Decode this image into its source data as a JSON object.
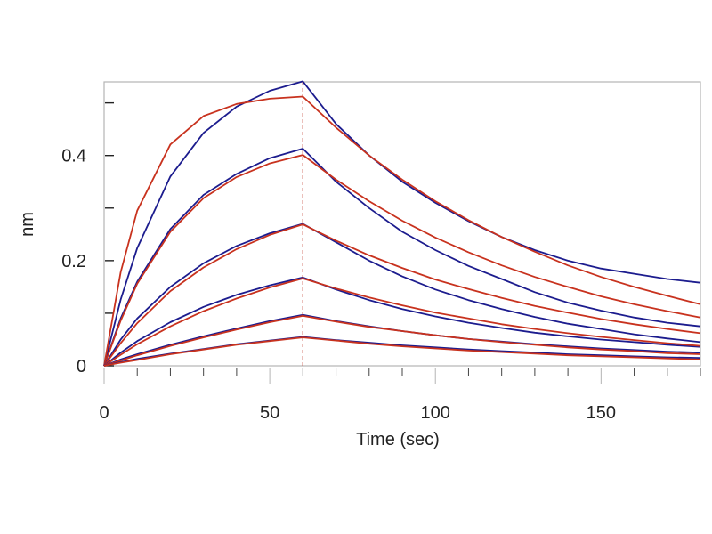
{
  "chart_data": {
    "type": "line",
    "title": "",
    "xlabel": "Time (sec)",
    "ylabel": "nm",
    "xlim": [
      0,
      180
    ],
    "ylim": [
      0,
      0.54
    ],
    "x_ticks": [
      0,
      50,
      100,
      150
    ],
    "x_tick_labels": [
      "0",
      "50",
      "100",
      "150"
    ],
    "x_minor_step": 10,
    "y_ticks": [
      0,
      0.2,
      0.4
    ],
    "y_tick_labels": [
      "0",
      "0.2",
      "0.4"
    ],
    "y_minor_ticks": [
      0.1,
      0.3,
      0.5
    ],
    "grid": false,
    "legend": "none",
    "association_end_marker": {
      "x": 60,
      "style": "dashed",
      "color": "#c0392b"
    },
    "colors": {
      "data": "#1c1c8e",
      "fit": "#c8321e",
      "frame": "#b4b4b4",
      "ticks": "#444444"
    },
    "x": [
      0,
      5,
      10,
      20,
      30,
      40,
      50,
      60,
      70,
      80,
      90,
      100,
      110,
      120,
      130,
      140,
      150,
      160,
      170,
      180
    ],
    "series": [
      {
        "kind": "data",
        "values": [
          0,
          0.126,
          0.224,
          0.36,
          0.443,
          0.493,
          0.523,
          0.541,
          0.46,
          0.4,
          0.35,
          0.31,
          0.275,
          0.245,
          0.22,
          0.2,
          0.185,
          0.175,
          0.165,
          0.158
        ]
      },
      {
        "kind": "fit",
        "values": [
          0,
          0.178,
          0.295,
          0.421,
          0.475,
          0.498,
          0.508,
          0.512,
          0.453,
          0.4,
          0.354,
          0.313,
          0.277,
          0.245,
          0.217,
          0.191,
          0.169,
          0.15,
          0.133,
          0.117
        ]
      },
      {
        "kind": "data",
        "values": [
          0,
          0.09,
          0.16,
          0.26,
          0.325,
          0.365,
          0.395,
          0.413,
          0.35,
          0.3,
          0.255,
          0.22,
          0.19,
          0.165,
          0.14,
          0.12,
          0.105,
          0.092,
          0.082,
          0.075
        ]
      },
      {
        "kind": "fit",
        "values": [
          0,
          0.086,
          0.156,
          0.255,
          0.319,
          0.359,
          0.385,
          0.401,
          0.354,
          0.313,
          0.276,
          0.244,
          0.216,
          0.191,
          0.169,
          0.15,
          0.132,
          0.117,
          0.104,
          0.092
        ]
      },
      {
        "kind": "data",
        "values": [
          0,
          0.05,
          0.09,
          0.15,
          0.195,
          0.228,
          0.252,
          0.27,
          0.235,
          0.2,
          0.17,
          0.145,
          0.125,
          0.108,
          0.093,
          0.08,
          0.07,
          0.06,
          0.052,
          0.045
        ]
      },
      {
        "kind": "fit",
        "values": [
          0,
          0.043,
          0.081,
          0.142,
          0.187,
          0.222,
          0.249,
          0.269,
          0.238,
          0.21,
          0.186,
          0.164,
          0.146,
          0.129,
          0.114,
          0.101,
          0.089,
          0.079,
          0.07,
          0.062
        ]
      },
      {
        "kind": "data",
        "values": [
          0,
          0.025,
          0.047,
          0.083,
          0.112,
          0.135,
          0.153,
          0.168,
          0.145,
          0.125,
          0.108,
          0.094,
          0.082,
          0.072,
          0.063,
          0.056,
          0.05,
          0.045,
          0.04,
          0.036
        ]
      },
      {
        "kind": "fit",
        "values": [
          0,
          0.021,
          0.041,
          0.075,
          0.104,
          0.128,
          0.149,
          0.166,
          0.147,
          0.13,
          0.115,
          0.101,
          0.09,
          0.079,
          0.07,
          0.062,
          0.055,
          0.049,
          0.043,
          0.038
        ]
      },
      {
        "kind": "data",
        "values": [
          0,
          0.012,
          0.022,
          0.04,
          0.056,
          0.071,
          0.085,
          0.097,
          0.085,
          0.075,
          0.066,
          0.058,
          0.051,
          0.046,
          0.041,
          0.037,
          0.033,
          0.03,
          0.027,
          0.025
        ]
      },
      {
        "kind": "fit",
        "values": [
          0,
          0.01,
          0.02,
          0.038,
          0.054,
          0.069,
          0.083,
          0.095,
          0.084,
          0.074,
          0.066,
          0.058,
          0.051,
          0.045,
          0.04,
          0.035,
          0.031,
          0.028,
          0.024,
          0.022
        ]
      },
      {
        "kind": "data",
        "values": [
          0,
          0.007,
          0.013,
          0.023,
          0.032,
          0.041,
          0.048,
          0.055,
          0.049,
          0.044,
          0.039,
          0.035,
          0.031,
          0.028,
          0.025,
          0.022,
          0.02,
          0.018,
          0.016,
          0.015
        ]
      },
      {
        "kind": "fit",
        "values": [
          0,
          0.006,
          0.011,
          0.022,
          0.031,
          0.04,
          0.047,
          0.054,
          0.048,
          0.042,
          0.037,
          0.033,
          0.029,
          0.026,
          0.023,
          0.02,
          0.018,
          0.016,
          0.014,
          0.012
        ]
      }
    ]
  }
}
